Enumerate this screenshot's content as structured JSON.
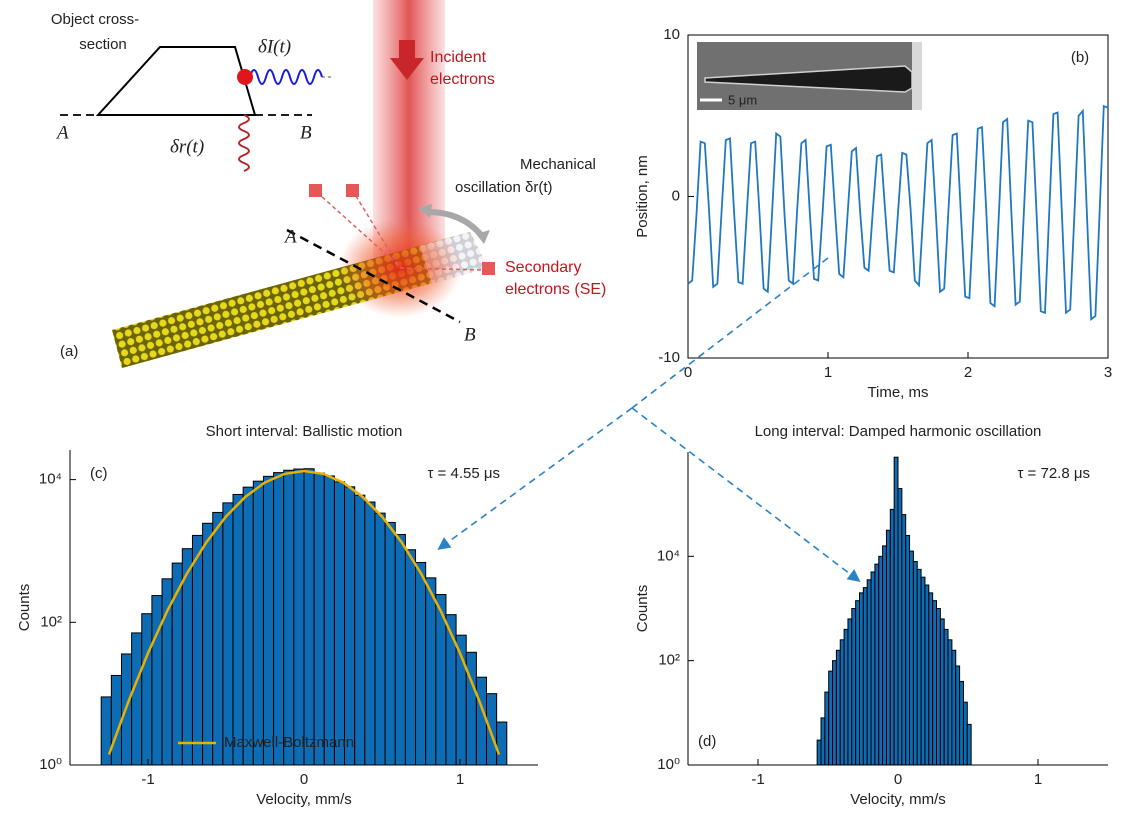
{
  "diagram": {
    "panel_label": "(a)",
    "cross_section_label": [
      "Object cross-",
      "section"
    ],
    "current_label": "δI(t)",
    "section_ends": [
      "A",
      "B"
    ],
    "displacement_label": "δr(t)",
    "beam_label": [
      "Incident",
      "electrons"
    ],
    "oscillation_label": [
      "Mechanical",
      "oscillation δr(t)"
    ],
    "cut_ends": [
      "A",
      "B"
    ],
    "se_label": [
      "Secondary",
      "electrons (SE)"
    ]
  },
  "chart_data": [
    {
      "type": "line",
      "xlabel": "Time, ms",
      "ylabel": "Position, nm",
      "annotations": [
        "(b)"
      ],
      "inset_label": "5 μm",
      "color": "#1f78c1",
      "xlim": [
        0,
        3
      ],
      "xticks": [
        0,
        1,
        2,
        3
      ],
      "ylim": [
        -10,
        10
      ],
      "yticks": [
        -10,
        0,
        10
      ],
      "x": [
        0,
        0.03,
        0.06,
        0.09,
        0.12,
        0.15,
        0.18,
        0.21,
        0.24,
        0.27,
        0.3,
        0.33,
        0.36,
        0.39,
        0.42,
        0.45,
        0.48,
        0.51,
        0.54,
        0.57,
        0.6,
        0.63,
        0.66,
        0.69,
        0.72,
        0.75,
        0.78,
        0.81,
        0.84,
        0.87,
        0.9,
        0.93,
        0.96,
        0.99,
        1.02,
        1.05,
        1.08,
        1.11,
        1.14,
        1.17,
        1.2,
        1.23,
        1.26,
        1.29,
        1.32,
        1.35,
        1.38,
        1.41,
        1.44,
        1.47,
        1.5,
        1.53,
        1.56,
        1.59,
        1.62,
        1.65,
        1.68,
        1.71,
        1.74,
        1.77,
        1.8,
        1.83,
        1.86,
        1.89,
        1.92,
        1.95,
        1.98,
        2.01,
        2.04,
        2.07,
        2.1,
        2.13,
        2.16,
        2.19,
        2.22,
        2.25,
        2.28,
        2.31,
        2.34,
        2.37,
        2.4,
        2.43,
        2.46,
        2.49,
        2.52,
        2.55,
        2.58,
        2.61,
        2.64,
        2.67,
        2.7,
        2.73,
        2.76,
        2.79,
        2.82,
        2.85,
        2.88,
        2.91,
        2.94,
        2.97,
        3.0
      ],
      "values": [
        -5.4,
        -5.2,
        -1.2,
        3.4,
        3.3,
        -0.8,
        -5.6,
        -5.4,
        -0.9,
        3.5,
        3.6,
        -1.1,
        -5.3,
        -5.4,
        -1.0,
        3.3,
        3.4,
        -0.9,
        -5.7,
        -5.9,
        -1.1,
        3.9,
        3.7,
        -1.2,
        -5.2,
        -5.4,
        -0.8,
        3.3,
        3.5,
        -1.0,
        -5.1,
        -5.2,
        -1.2,
        3.1,
        3.2,
        -0.9,
        -4.8,
        -5.0,
        -1.1,
        2.8,
        3.0,
        -1.0,
        -4.4,
        -4.6,
        -0.9,
        2.5,
        2.6,
        -1.1,
        -4.6,
        -4.7,
        -1.0,
        2.7,
        2.6,
        -0.8,
        -5.2,
        -5.5,
        -1.1,
        3.3,
        3.5,
        -1.0,
        -5.9,
        -5.7,
        -0.9,
        3.8,
        3.9,
        -1.2,
        -6.2,
        -6.3,
        -1.1,
        4.2,
        4.3,
        -0.8,
        -6.6,
        -6.8,
        -1.2,
        4.6,
        4.8,
        -1.0,
        -6.7,
        -6.5,
        -0.8,
        4.7,
        4.6,
        -1.1,
        -7.1,
        -7.2,
        -1.0,
        5.1,
        5.2,
        -0.9,
        -7.2,
        -7.0,
        -1.1,
        5.0,
        5.3,
        -1.2,
        -7.6,
        -7.4,
        -1.0,
        5.6,
        5.5
      ]
    },
    {
      "type": "histogram",
      "title": "Short interval: Ballistic motion",
      "xlabel": "Velocity, mm/s",
      "ylabel": "Counts",
      "annotations": [
        "(c)",
        "τ = 4.55 μs"
      ],
      "color": "#0e6cb4",
      "y_scale": "log",
      "xlim": [
        -1.5,
        1.5
      ],
      "xticks": [
        -1,
        0,
        1
      ],
      "ylim": [
        1,
        26000
      ],
      "yticks": [
        {
          "value": 1,
          "label": "10⁰"
        },
        {
          "value": 100,
          "label": "10²"
        },
        {
          "value": 10000,
          "label": "10⁴"
        }
      ],
      "bins": [
        -1.3,
        -1.235,
        -1.17,
        -1.105,
        -1.04,
        -0.975,
        -0.91,
        -0.845,
        -0.78,
        -0.715,
        -0.65,
        -0.585,
        -0.52,
        -0.455,
        -0.39,
        -0.325,
        -0.26,
        -0.195,
        -0.13,
        -0.065,
        0,
        0.065,
        0.13,
        0.195,
        0.26,
        0.325,
        0.39,
        0.455,
        0.52,
        0.585,
        0.65,
        0.715,
        0.78,
        0.845,
        0.91,
        0.975,
        1.04,
        1.105,
        1.17,
        1.235,
        1.3
      ],
      "values": [
        9,
        18,
        36,
        71,
        132,
        237,
        407,
        676,
        1076,
        1652,
        2443,
        3467,
        4721,
        6194,
        7834,
        9506,
        11117,
        12531,
        13520,
        14060,
        14210,
        12380,
        11250,
        9310,
        7920,
        6050,
        4850,
        3390,
        2510,
        1700,
        1040,
        690,
        420,
        245,
        128,
        66,
        38,
        17,
        10,
        4
      ],
      "curves": [
        {
          "name": "Maxwell-Boltzmann",
          "color": "#eab000",
          "x": [
            -1.25,
            -1.125,
            -1,
            -0.875,
            -0.75,
            -0.625,
            -0.5,
            -0.375,
            -0.25,
            -0.125,
            0,
            0.125,
            0.25,
            0.375,
            0.5,
            0.625,
            0.75,
            0.875,
            1,
            1.125,
            1.25
          ],
          "values": [
            1.4,
            7.8,
            37,
            147,
            485,
            1330,
            3041,
            5768,
            9120,
            12023,
            13183,
            12023,
            9120,
            5768,
            3041,
            1330,
            485,
            147,
            37,
            7.8,
            1.4
          ]
        }
      ]
    },
    {
      "type": "histogram",
      "title": "Long interval: Damped harmonic oscillation",
      "xlabel": "Velocity, mm/s",
      "ylabel": "Counts",
      "annotations": [
        "(d)",
        "τ = 72.8 μs"
      ],
      "color": "#0e6cb4",
      "y_scale": "log",
      "xlim": [
        -1.5,
        1.5
      ],
      "xticks": [
        -1,
        0,
        1
      ],
      "ylim": [
        1,
        1000000
      ],
      "yticks": [
        {
          "value": 1,
          "label": "10⁰"
        },
        {
          "value": 100,
          "label": "10²"
        },
        {
          "value": 10000,
          "label": "10⁴"
        }
      ],
      "bins": [
        -0.5775,
        -0.55,
        -0.5225,
        -0.495,
        -0.4675,
        -0.44,
        -0.4125,
        -0.385,
        -0.3575,
        -0.33,
        -0.3025,
        -0.275,
        -0.2475,
        -0.22,
        -0.1925,
        -0.165,
        -0.1375,
        -0.11,
        -0.0825,
        -0.055,
        -0.0275,
        0,
        0.0275,
        0.055,
        0.0825,
        0.11,
        0.1375,
        0.165,
        0.1925,
        0.22,
        0.2475,
        0.275,
        0.3025,
        0.33,
        0.3575,
        0.385,
        0.4125,
        0.44,
        0.4675,
        0.495,
        0.5225
      ],
      "values": [
        3,
        8,
        25,
        63,
        100,
        158,
        251,
        398,
        631,
        1000,
        1413,
        1995,
        2512,
        3548,
        5012,
        7079,
        10000,
        15849,
        31623,
        79433,
        794328,
        199526,
        63096,
        25119,
        12589,
        7943,
        5623,
        3981,
        2818,
        1995,
        1413,
        1000,
        631,
        398,
        251,
        158,
        79,
        40,
        16,
        6
      ]
    }
  ]
}
